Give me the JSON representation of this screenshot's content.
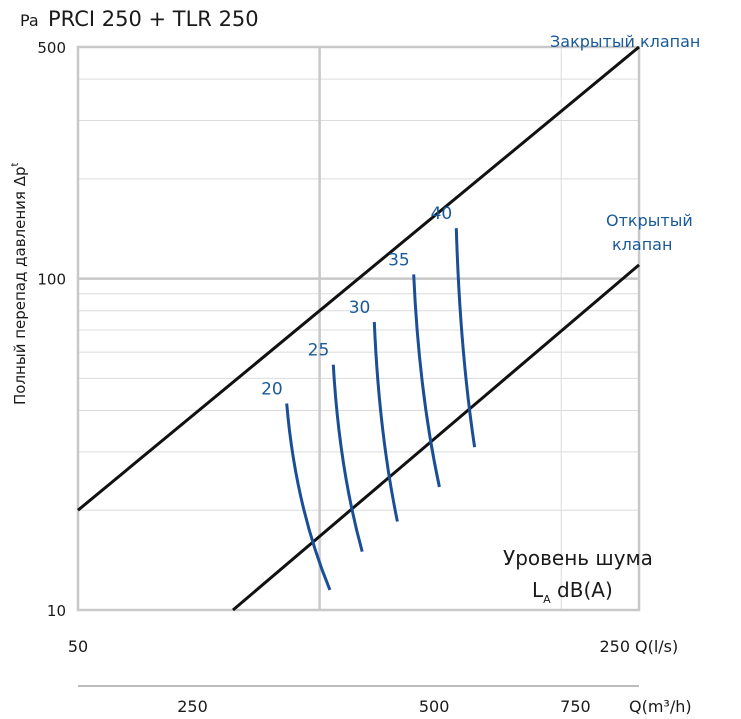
{
  "chart_data": {
    "type": "line",
    "title": "PRCI 250 + TLR 250",
    "y_unit": "Pa",
    "ylabel_main": "Полный перепад давления Δp",
    "ylabel_sup": "t",
    "y_scale": "log",
    "ylim": [
      10,
      500
    ],
    "y_ticks": [
      {
        "value": 10,
        "label": "10"
      },
      {
        "value": 100,
        "label": "100"
      },
      {
        "value": 500,
        "label": "500"
      }
    ],
    "x_scale": "log",
    "xlim": [
      50,
      250
    ],
    "x_ticks": [
      {
        "value": 50,
        "label": "50"
      },
      {
        "value": 250,
        "label": "250"
      }
    ],
    "x_unit_label": "Q(l/s)",
    "x2_ticks": [
      {
        "value": 250,
        "label": "250"
      },
      {
        "value": 500,
        "label": "500"
      },
      {
        "value": 750,
        "label": "750"
      }
    ],
    "x2_unit_label": "Q(m³/h)",
    "series": [
      {
        "name": "Закрытый клапан",
        "x": [
          50,
          250
        ],
        "y": [
          20,
          500
        ]
      },
      {
        "name_line1": "Открытый",
        "name_line2": "клапан",
        "x": [
          78,
          250
        ],
        "y": [
          10,
          110
        ]
      }
    ],
    "noise_label_line1": "Уровень шума",
    "noise_label_base": "L",
    "noise_label_sub": "A",
    "noise_label_rest": " dB(A)",
    "noise_lines": [
      {
        "label": "20",
        "top": [
          91,
          42
        ],
        "bottom": [
          103,
          11.5
        ]
      },
      {
        "label": "25",
        "top": [
          104,
          55
        ],
        "bottom": [
          113,
          15
        ]
      },
      {
        "label": "30",
        "top": [
          117,
          74
        ],
        "bottom": [
          125,
          18.5
        ]
      },
      {
        "label": "35",
        "top": [
          131,
          103
        ],
        "bottom": [
          141,
          23.5
        ]
      },
      {
        "label": "40",
        "top": [
          148,
          142
        ],
        "bottom": [
          156,
          31
        ]
      }
    ]
  }
}
